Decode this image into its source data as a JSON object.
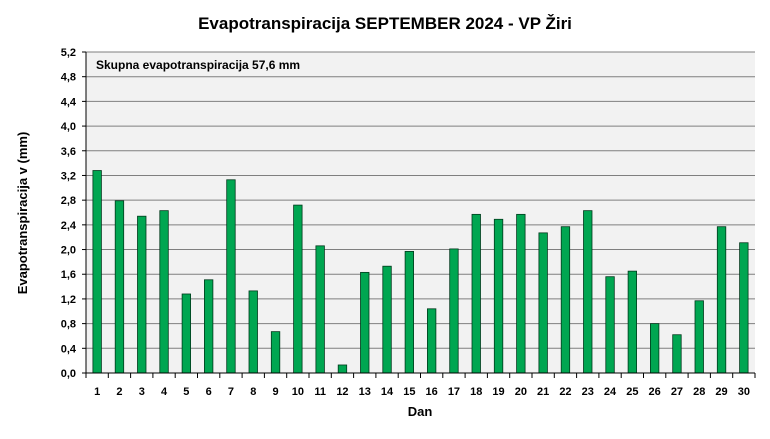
{
  "chart_data": {
    "type": "bar",
    "title": "Evapotranspiracija  SEPTEMBER  2024 - VP Žiri",
    "xlabel": "Dan",
    "ylabel": "Evapotranspiracija v  (mm)",
    "annotation": "Skupna evapotranspiracija 57,6 mm",
    "categories": [
      "1",
      "2",
      "3",
      "4",
      "5",
      "6",
      "7",
      "8",
      "9",
      "10",
      "11",
      "12",
      "13",
      "14",
      "15",
      "16",
      "17",
      "18",
      "19",
      "20",
      "21",
      "22",
      "23",
      "24",
      "25",
      "26",
      "27",
      "28",
      "29",
      "30"
    ],
    "series": [
      {
        "values": [
          3.28,
          2.79,
          2.54,
          2.63,
          1.28,
          1.51,
          3.13,
          1.33,
          0.67,
          2.72,
          2.06,
          0.13,
          1.63,
          1.73,
          1.97,
          1.04,
          2.01,
          2.57,
          2.49,
          2.57,
          2.27,
          2.37,
          2.63,
          1.56,
          1.65,
          0.8,
          0.62,
          1.17,
          2.37,
          2.11
        ]
      }
    ],
    "ylim": [
      0,
      5.2
    ],
    "yticks": [
      "0,0",
      "0,4",
      "0,8",
      "1,2",
      "1,6",
      "2,0",
      "2,4",
      "2,8",
      "3,2",
      "3,6",
      "4,0",
      "4,4",
      "4,8",
      "5,2"
    ],
    "grid": true,
    "legend": "none",
    "colors": {
      "bar_fill": "#00a651",
      "bar_stroke": "#003a1c",
      "plot_background": "#f2f2f2",
      "grid": "#7f7f7f"
    }
  }
}
